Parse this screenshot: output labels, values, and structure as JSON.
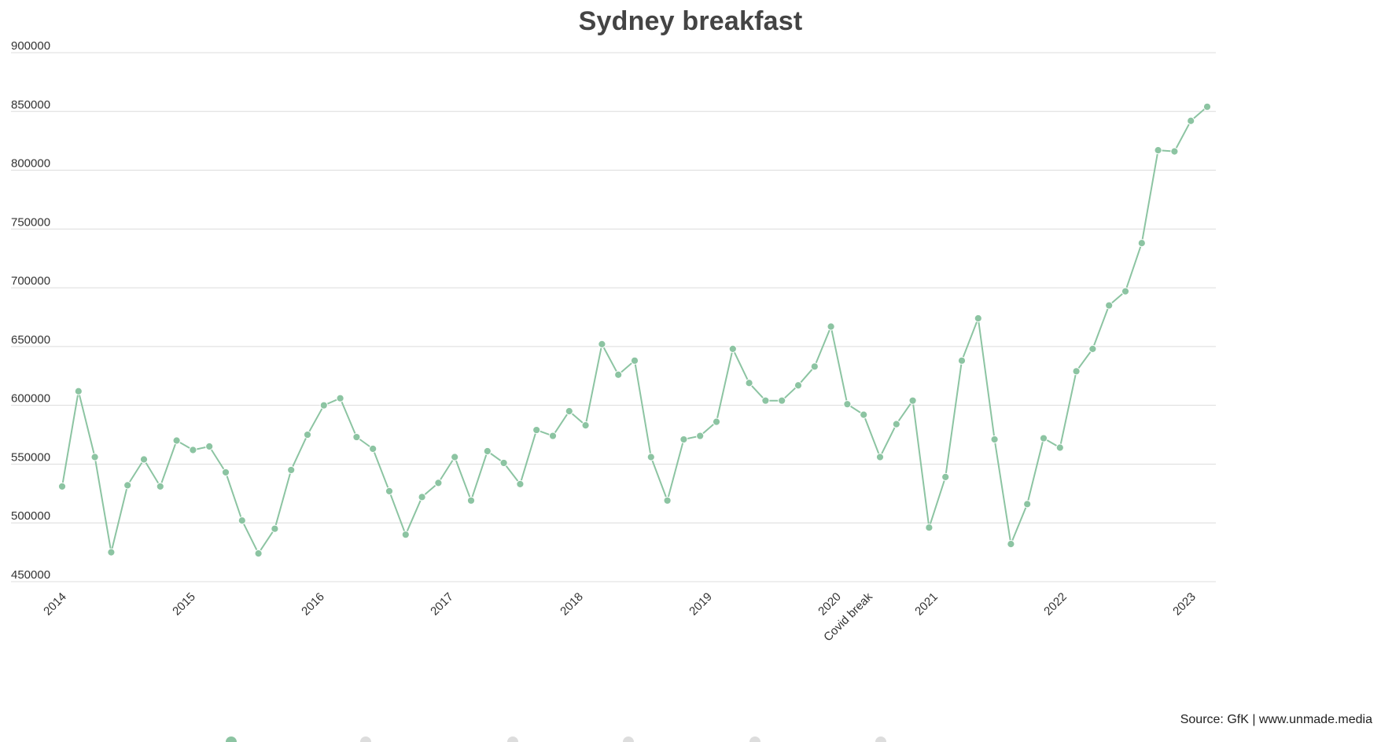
{
  "chart_data": {
    "type": "line",
    "title": "Sydney breakfast",
    "xlabel": "",
    "ylabel": "",
    "ylim": [
      450000,
      900000
    ],
    "y_ticks": [
      "900000",
      "850000",
      "800000",
      "750000",
      "700000",
      "650000",
      "600000",
      "550000",
      "500000",
      "450000"
    ],
    "x_tick_labels": [
      "2014",
      "2015",
      "2016",
      "2017",
      "2018",
      "2019",
      "2020",
      "Covid break",
      "2021",
      "2022",
      "2023"
    ],
    "grid": true,
    "legend_placement": "bottom (cut off)",
    "colors": {
      "series": "#8cc4a2",
      "grid": "#dcdcdc",
      "legend_inactive": "#dddddd"
    },
    "series": [
      {
        "values": [
          531000,
          612000,
          556000,
          475000,
          532000,
          554000,
          531000,
          570000,
          562000,
          565000,
          543000,
          502000,
          474000,
          495000,
          545000,
          575000,
          600000,
          606000,
          573000,
          563000,
          527000,
          490000,
          522000,
          534000,
          556000,
          519000,
          561000,
          551000,
          533000,
          579000,
          574000,
          595000,
          583000,
          652000,
          626000,
          638000,
          556000,
          519000,
          571000,
          574000,
          586000,
          648000,
          619000,
          604000,
          604000,
          617000,
          633000,
          667000,
          601000,
          592000,
          556000,
          584000,
          604000,
          496000,
          539000,
          638000,
          674000,
          571000,
          482000,
          516000,
          572000,
          564000,
          629000,
          648000,
          685000,
          697000,
          738000,
          817000,
          816000,
          842000,
          854000
        ]
      }
    ],
    "source": "Source: GfK | www.unmade.media"
  }
}
